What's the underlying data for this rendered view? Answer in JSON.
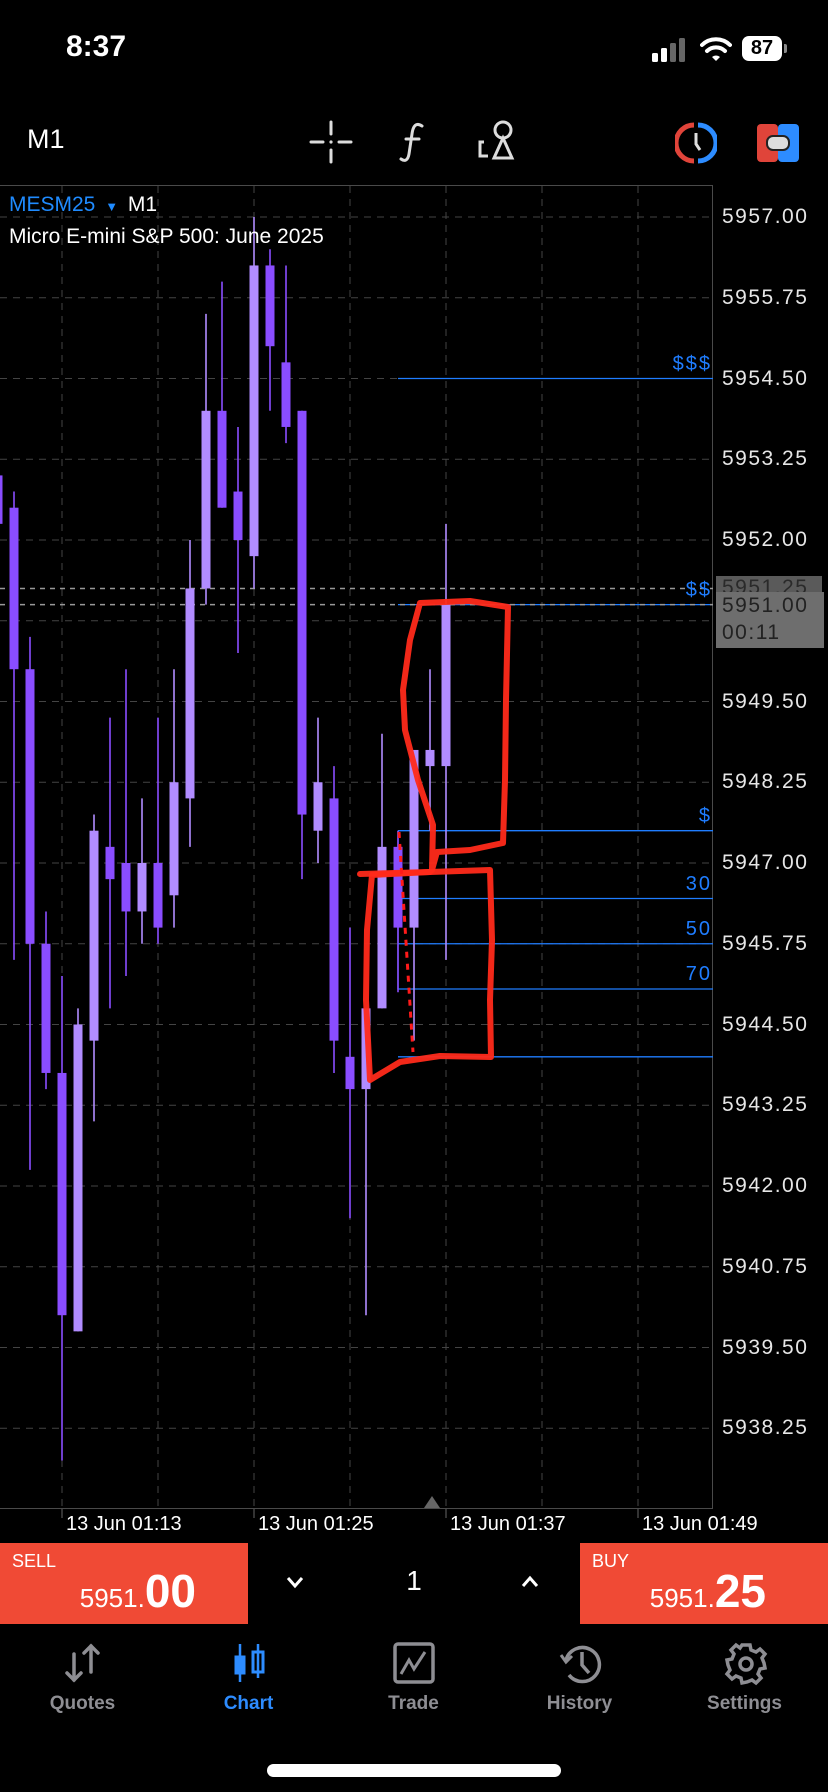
{
  "status_bar": {
    "time": "8:37",
    "battery": "87"
  },
  "toolbar": {
    "timeframe": "M1",
    "icons": [
      "crosshair-icon",
      "indicators-f-icon",
      "objects-icon",
      "one-click-trading-icon",
      "trade-levels-toggle-icon"
    ]
  },
  "chart_header": {
    "symbol": "MESM25",
    "dropdown": "▼",
    "timeframe": "M1",
    "description": "Micro E-mini S&P 500: June 2025"
  },
  "colors": {
    "bull": "#b18cff",
    "bear": "#8a4dff",
    "fib": "#1f7dff",
    "sell": "#f04a35",
    "buy": "#f04a35",
    "accent": "#2d8cff",
    "annotation": "#ff2a1a"
  },
  "chart_data": {
    "type": "candlestick",
    "ylim": [
      5937.5,
      5957.3
    ],
    "price_ticks": [
      "5957.00",
      "5955.75",
      "5954.50",
      "5953.25",
      "5952.00",
      "5949.50",
      "5948.25",
      "5947.00",
      "5945.75",
      "5944.50",
      "5943.25",
      "5942.00",
      "5940.75",
      "5939.50",
      "5938.25"
    ],
    "time_ticks": [
      "13 Jun 01:13",
      "13 Jun 01:25",
      "13 Jun 01:37",
      "13 Jun 01:49"
    ],
    "ask": {
      "price": "5951.25",
      "value": 5951.25
    },
    "bid": {
      "price": "5951.00",
      "value": 5951.0,
      "countdown": "00:11"
    },
    "candles": [
      {
        "t": "01:09",
        "o": 5953.0,
        "h": 5953.25,
        "l": 5952.25,
        "c": 5952.25
      },
      {
        "t": "01:10",
        "o": 5952.5,
        "h": 5952.75,
        "l": 5945.5,
        "c": 5950.0
      },
      {
        "t": "01:11",
        "o": 5950.0,
        "h": 5950.5,
        "l": 5942.25,
        "c": 5945.75
      },
      {
        "t": "01:12",
        "o": 5945.75,
        "h": 5946.25,
        "l": 5943.5,
        "c": 5943.75
      },
      {
        "t": "01:13",
        "o": 5943.75,
        "h": 5945.25,
        "l": 5937.75,
        "c": 5940.0
      },
      {
        "t": "01:14",
        "o": 5939.75,
        "h": 5944.75,
        "l": 5939.75,
        "c": 5944.5
      },
      {
        "t": "01:15",
        "o": 5944.25,
        "h": 5947.75,
        "l": 5943.0,
        "c": 5947.5
      },
      {
        "t": "01:16",
        "o": 5947.25,
        "h": 5949.25,
        "l": 5944.75,
        "c": 5946.75
      },
      {
        "t": "01:17",
        "o": 5947.0,
        "h": 5950.0,
        "l": 5945.25,
        "c": 5946.25
      },
      {
        "t": "01:18",
        "o": 5946.25,
        "h": 5948.0,
        "l": 5945.75,
        "c": 5947.0
      },
      {
        "t": "01:19",
        "o": 5947.0,
        "h": 5949.25,
        "l": 5945.75,
        "c": 5946.0
      },
      {
        "t": "01:20",
        "o": 5946.5,
        "h": 5950.0,
        "l": 5946.0,
        "c": 5948.25
      },
      {
        "t": "01:21",
        "o": 5948.0,
        "h": 5952.0,
        "l": 5947.25,
        "c": 5951.25
      },
      {
        "t": "01:22",
        "o": 5951.25,
        "h": 5955.5,
        "l": 5951.0,
        "c": 5954.0
      },
      {
        "t": "01:23",
        "o": 5954.0,
        "h": 5956.0,
        "l": 5952.5,
        "c": 5952.5
      },
      {
        "t": "01:24",
        "o": 5952.75,
        "h": 5953.75,
        "l": 5950.25,
        "c": 5952.0
      },
      {
        "t": "01:25",
        "o": 5951.75,
        "h": 5957.0,
        "l": 5951.25,
        "c": 5956.25
      },
      {
        "t": "01:26",
        "o": 5956.25,
        "h": 5956.5,
        "l": 5954.0,
        "c": 5955.0
      },
      {
        "t": "01:27",
        "o": 5954.75,
        "h": 5956.25,
        "l": 5953.5,
        "c": 5953.75
      },
      {
        "t": "01:28",
        "o": 5954.0,
        "h": 5954.0,
        "l": 5946.75,
        "c": 5947.75
      },
      {
        "t": "01:29",
        "o": 5947.5,
        "h": 5949.25,
        "l": 5947.0,
        "c": 5948.25
      },
      {
        "t": "01:30",
        "o": 5948.0,
        "h": 5948.5,
        "l": 5943.75,
        "c": 5944.25
      },
      {
        "t": "01:31",
        "o": 5944.0,
        "h": 5946.0,
        "l": 5941.5,
        "c": 5943.5
      },
      {
        "t": "01:32",
        "o": 5943.5,
        "h": 5944.75,
        "l": 5940.0,
        "c": 5944.75
      },
      {
        "t": "01:33",
        "o": 5944.75,
        "h": 5949.0,
        "l": 5944.75,
        "c": 5947.25
      },
      {
        "t": "01:34",
        "o": 5947.25,
        "h": 5947.5,
        "l": 5945.0,
        "c": 5946.0
      },
      {
        "t": "01:35",
        "o": 5946.0,
        "h": 5948.75,
        "l": 5944.25,
        "c": 5948.75
      },
      {
        "t": "01:36",
        "o": 5948.5,
        "h": 5950.0,
        "l": 5947.5,
        "c": 5948.75
      },
      {
        "t": "01:37",
        "o": 5948.5,
        "h": 5952.25,
        "l": 5945.5,
        "c": 5951.0
      }
    ],
    "fib_levels": [
      {
        "label": "$$$",
        "price": 5954.5
      },
      {
        "label": "$$",
        "price": 5951.0
      },
      {
        "label": "$",
        "price": 5947.5
      },
      {
        "label": "30",
        "price": 5946.45
      },
      {
        "label": "50",
        "price": 5945.75
      },
      {
        "label": "70",
        "price": 5945.05
      },
      {
        "label": "",
        "price": 5944.0
      }
    ]
  },
  "trade_panel": {
    "sell": {
      "label": "SELL",
      "price_small": "5951.",
      "price_big": "00"
    },
    "buy": {
      "label": "BUY",
      "price_small": "5951.",
      "price_big": "25"
    },
    "lot": "1",
    "down": "⌄",
    "up": "⌃"
  },
  "nav": [
    {
      "label": "Quotes",
      "icon": "quotes-arrows-icon"
    },
    {
      "label": "Chart",
      "icon": "candlestick-chart-icon",
      "active": true
    },
    {
      "label": "Trade",
      "icon": "trade-chart-icon"
    },
    {
      "label": "History",
      "icon": "history-clock-icon"
    },
    {
      "label": "Settings",
      "icon": "settings-gear-icon"
    }
  ]
}
